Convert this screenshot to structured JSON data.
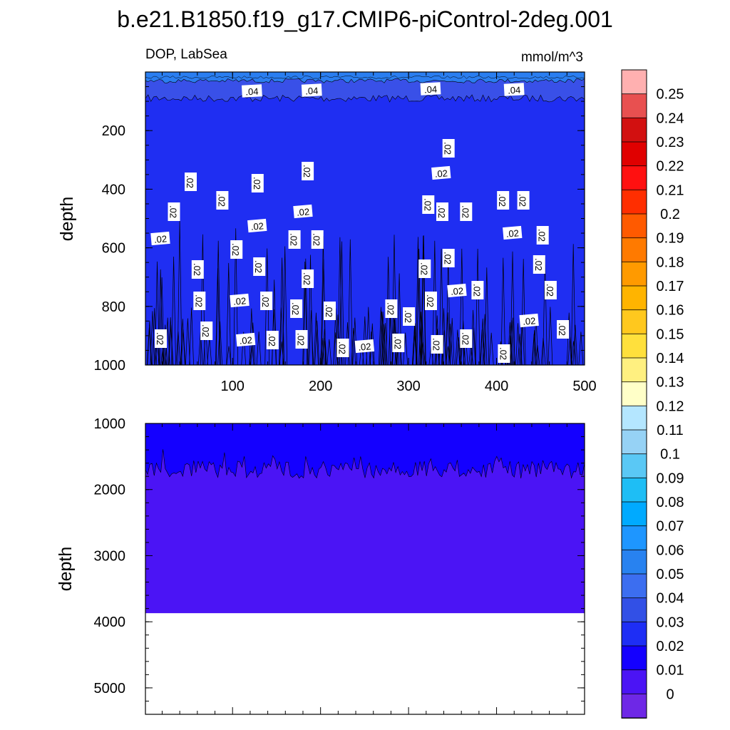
{
  "title": "b.e21.B1850.f19_g17.CMIP6-piControl-2deg.001",
  "chart_data": [
    {
      "type": "heatmap",
      "panel": "upper",
      "left_label": "DOP, LabSea",
      "right_label": "mmol/m^3",
      "xlabel": "",
      "ylabel": "depth",
      "xlim": [
        1,
        500
      ],
      "ylim": [
        1000,
        0
      ],
      "x_ticks": [
        "100",
        "200",
        "300",
        "400",
        "500"
      ],
      "y_ticks": [
        "200",
        "400",
        "600",
        "800",
        "1000"
      ],
      "layers": [
        {
          "from_depth": 0,
          "to_depth": 30,
          "value_range": "0.05-0.06"
        },
        {
          "from_depth": 30,
          "to_depth": 90,
          "value_range": "0.04-0.05"
        },
        {
          "from_depth": 90,
          "to_depth": 1000,
          "value_range": "0.02-0.03"
        }
      ],
      "contour_labels": [
        ".04",
        ".02"
      ]
    },
    {
      "type": "heatmap",
      "panel": "lower",
      "xlabel": "",
      "ylabel": "depth",
      "xlim": [
        1,
        500
      ],
      "ylim": [
        5400,
        1000
      ],
      "y_ticks": [
        "1000",
        "2000",
        "3000",
        "4000",
        "5000"
      ],
      "layers": [
        {
          "from_depth": 1000,
          "to_depth": 1700,
          "value_range": "0.01-0.02"
        },
        {
          "from_depth": 1700,
          "to_depth": 3870,
          "value_range": "0-0.01"
        }
      ],
      "no_data_below_depth": 3870
    }
  ],
  "colorbar": {
    "labels": [
      "0.25",
      "0.24",
      "0.23",
      "0.22",
      "0.21",
      "0.2",
      "0.19",
      "0.18",
      "0.17",
      "0.16",
      "0.15",
      "0.14",
      "0.13",
      "0.12",
      "0.11",
      "0.1",
      "0.09",
      "0.08",
      "0.07",
      "0.06",
      "0.05",
      "0.04",
      "0.03",
      "0.02",
      "0.01",
      "0"
    ],
    "colors": [
      "#ffb0b0",
      "#e85050",
      "#d21010",
      "#e00000",
      "#ff1010",
      "#ff2e00",
      "#ff5a00",
      "#ff7a00",
      "#ff9a00",
      "#ffb400",
      "#ffc81e",
      "#ffe03c",
      "#fff080",
      "#ffffc8",
      "#b4e6ff",
      "#96d2f5",
      "#5ac8f5",
      "#1ebef5",
      "#00aaff",
      "#1e96ff",
      "#2882f0",
      "#3c6ef0",
      "#3250e6",
      "#1e2ef5",
      "#1400ff",
      "#4b14f5",
      "#6e28e6"
    ]
  }
}
